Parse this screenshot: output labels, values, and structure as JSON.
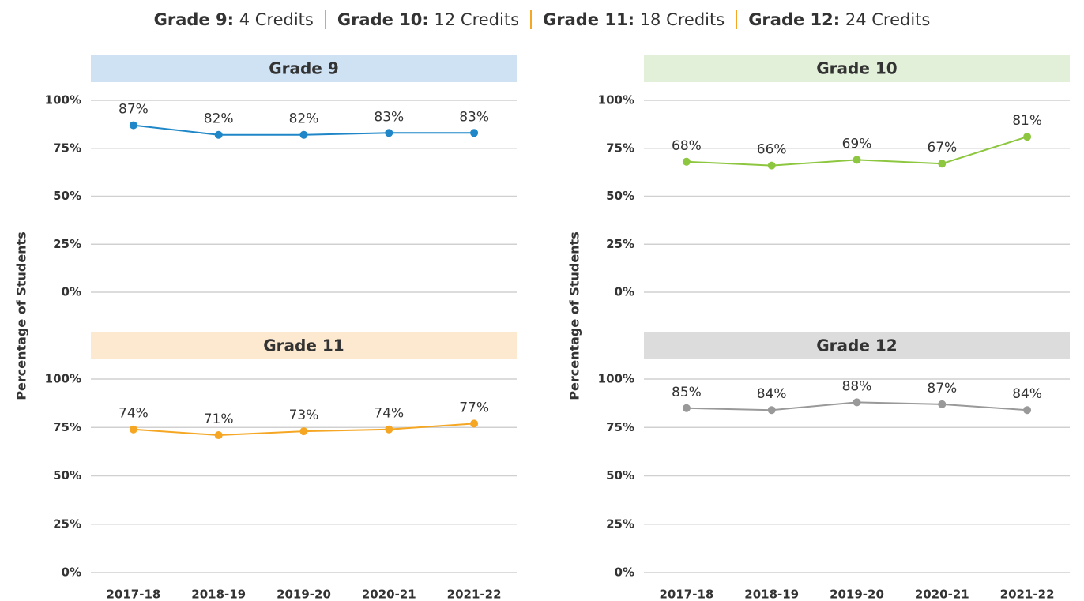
{
  "header": [
    {
      "label": "Grade 9:",
      "text": "4 Credits"
    },
    {
      "label": "Grade 10:",
      "text": "12 Credits"
    },
    {
      "label": "Grade 11:",
      "text": "18 Credits"
    },
    {
      "label": "Grade 12:",
      "text": "24 Credits"
    }
  ],
  "chart_data": [
    {
      "type": "line",
      "title": "Grade 9",
      "title_bg": "#cfe2f3",
      "ylabel": "Percentage of Students",
      "categories": [
        "2017-18",
        "2018-19",
        "2019-20",
        "2020-21",
        "2021-22"
      ],
      "values": [
        87,
        82,
        82,
        83,
        83
      ],
      "value_labels": [
        "87%",
        "82%",
        "82%",
        "83%",
        "83%"
      ],
      "color": "#1f87c7",
      "ylim": [
        0,
        100
      ],
      "yticks": [
        {
          "value": 0,
          "label": "0%"
        },
        {
          "value": 25,
          "label": "25%"
        },
        {
          "value": 50,
          "label": "50%"
        },
        {
          "value": 75,
          "label": "75%"
        },
        {
          "value": 100,
          "label": "100%"
        }
      ],
      "grid": true
    },
    {
      "type": "line",
      "title": "Grade 10",
      "title_bg": "#e2efd9",
      "ylabel": "Percentage of Students",
      "categories": [
        "2017-18",
        "2018-19",
        "2019-20",
        "2020-21",
        "2021-22"
      ],
      "values": [
        68,
        66,
        69,
        67,
        81
      ],
      "value_labels": [
        "68%",
        "66%",
        "69%",
        "67%",
        "81%"
      ],
      "color": "#8dc63f",
      "ylim": [
        0,
        100
      ],
      "yticks": [
        {
          "value": 0,
          "label": "0%"
        },
        {
          "value": 25,
          "label": "25%"
        },
        {
          "value": 50,
          "label": "50%"
        },
        {
          "value": 75,
          "label": "75%"
        },
        {
          "value": 100,
          "label": "100%"
        }
      ],
      "grid": true
    },
    {
      "type": "line",
      "title": "Grade 11",
      "title_bg": "#fde9d0",
      "categories": [
        "2017-18",
        "2018-19",
        "2019-20",
        "2020-21",
        "2021-22"
      ],
      "values": [
        74,
        71,
        73,
        74,
        77
      ],
      "value_labels": [
        "74%",
        "71%",
        "73%",
        "74%",
        "77%"
      ],
      "color": "#f5a623",
      "ylim": [
        0,
        100
      ],
      "yticks": [
        {
          "value": 0,
          "label": "0%"
        },
        {
          "value": 25,
          "label": "25%"
        },
        {
          "value": 50,
          "label": "50%"
        },
        {
          "value": 75,
          "label": "75%"
        },
        {
          "value": 100,
          "label": "100%"
        }
      ],
      "grid": true
    },
    {
      "type": "line",
      "title": "Grade 12",
      "title_bg": "#dcdcdc",
      "categories": [
        "2017-18",
        "2018-19",
        "2019-20",
        "2020-21",
        "2021-22"
      ],
      "values": [
        85,
        84,
        88,
        87,
        84
      ],
      "value_labels": [
        "85%",
        "84%",
        "88%",
        "87%",
        "84%"
      ],
      "color": "#999999",
      "ylim": [
        0,
        100
      ],
      "yticks": [
        {
          "value": 0,
          "label": "0%"
        },
        {
          "value": 25,
          "label": "25%"
        },
        {
          "value": 50,
          "label": "50%"
        },
        {
          "value": 75,
          "label": "75%"
        },
        {
          "value": 100,
          "label": "100%"
        }
      ],
      "grid": true
    }
  ]
}
